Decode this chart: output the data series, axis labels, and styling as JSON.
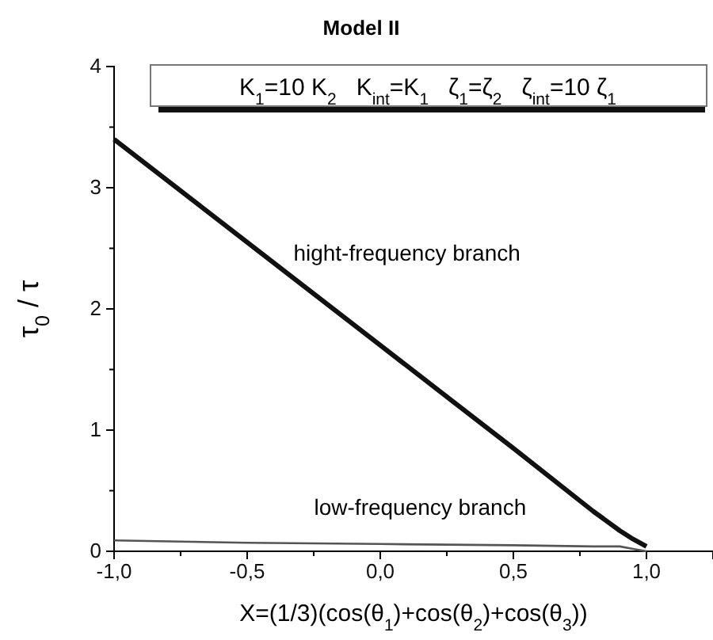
{
  "chart_data": {
    "type": "line",
    "title": "Model II",
    "xlabel": "X=(1/3)(cos(θ$_{1}$)+cos(θ$_{2}$)+cos(θ$_{3}$))",
    "ylabel": "τ$_{0}$ / τ",
    "annotations": [
      "K$_{1}$=10 K$_{2}$   K$_{int}$=K$_{1}$   ζ$_{1}$=ζ$_{2}$   ζ$_{int}$=10 ζ$_{1}$",
      "hight-frequency branch",
      "low-frequency branch"
    ],
    "x": [
      -1,
      -0.5,
      0,
      0.5,
      0.8,
      0.9,
      0.95,
      1.0
    ],
    "series": [
      {
        "color": "#111111",
        "values": [
          3.4,
          2.55,
          1.7,
          0.85,
          0.33,
          0.17,
          0.1,
          0.04
        ]
      },
      {
        "color": "#555555",
        "values": [
          0.09,
          0.07,
          0.06,
          0.05,
          0.04,
          0.04,
          0.02,
          0.0
        ]
      }
    ],
    "xlim": [
      -1,
      1.25
    ],
    "xticks": [
      {
        "value": -1,
        "label": "-1,0"
      },
      {
        "value": -0.75,
        "label": null
      },
      {
        "value": -0.5,
        "label": "-0,5"
      },
      {
        "value": -0.25,
        "label": null
      },
      {
        "value": 0,
        "label": "0,0"
      },
      {
        "value": 0.25,
        "label": null
      },
      {
        "value": 0.5,
        "label": "0,5"
      },
      {
        "value": 0.75,
        "label": null
      },
      {
        "value": 1,
        "label": "1,0"
      }
    ],
    "ylim": [
      0,
      4
    ],
    "yticks": [
      0,
      {
        "value": 0.5,
        "label": null
      },
      1,
      {
        "value": 1.5,
        "label": null
      },
      2,
      {
        "value": 2.5,
        "label": null
      },
      3,
      {
        "value": 3.5,
        "label": null
      },
      4
    ],
    "grid": false,
    "marker": "none",
    "line_style": "solid"
  }
}
